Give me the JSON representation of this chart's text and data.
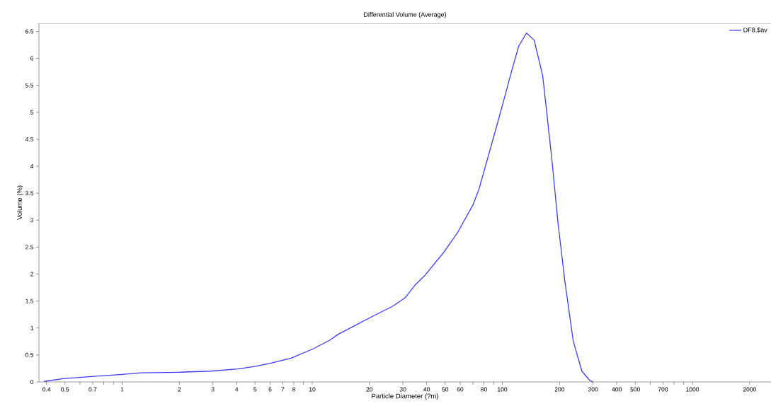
{
  "chart_data": {
    "type": "line",
    "title": "Differential Volume (Average)",
    "xlabel": "Particle Diameter (?m)",
    "ylabel": "Volume (%)",
    "log": "x",
    "legend": "top right",
    "xlim": [
      0.365,
      2590
    ],
    "ylim": [
      0,
      6.65
    ],
    "xticks": [
      0.4,
      0.5,
      {
        "value": 0.6,
        "label": null
      },
      0.7,
      {
        "value": 0.8,
        "label": null
      },
      {
        "value": 0.9,
        "label": null
      },
      1,
      2,
      3,
      4,
      5,
      6,
      7,
      8,
      {
        "value": 9,
        "label": null
      },
      10,
      20,
      30,
      40,
      50,
      60,
      {
        "value": 70,
        "label": null
      },
      80,
      {
        "value": 90,
        "label": null
      },
      100,
      200,
      300,
      400,
      500,
      {
        "value": 600,
        "label": null
      },
      700,
      {
        "value": 800,
        "label": null
      },
      {
        "value": 900,
        "label": null
      },
      1000,
      2000
    ],
    "yticks": [
      0,
      0.5,
      1,
      1.5,
      2,
      2.5,
      3,
      3.5,
      4,
      4.5,
      5,
      5.5,
      6,
      6.5
    ],
    "x": [
      0.388,
      0.49,
      0.689,
      1,
      1.27,
      2,
      2.91,
      4.07,
      5.04,
      6.07,
      7.74,
      10.2,
      12.3,
      13.8,
      20.6,
      26.4,
      30.8,
      34.6,
      39,
      49.1,
      58.4,
      70,
      75.3,
      81.8,
      94.5,
      103,
      112,
      122,
      134,
      147,
      163,
      172,
      183,
      196,
      213,
      236,
      262,
      288,
      300
    ],
    "series": [
      {
        "name": "DF8.$av",
        "color": "#3c3cff",
        "values": [
          0.01,
          0.06,
          0.1,
          0.14,
          0.17,
          0.18,
          0.2,
          0.24,
          0.29,
          0.35,
          0.44,
          0.62,
          0.77,
          0.89,
          1.21,
          1.4,
          1.56,
          1.79,
          1.97,
          2.4,
          2.78,
          3.28,
          3.57,
          4.02,
          4.81,
          5.29,
          5.77,
          6.23,
          6.47,
          6.34,
          5.68,
          4.94,
          4.06,
          2.97,
          1.88,
          0.76,
          0.2,
          0.03,
          0
        ]
      }
    ]
  }
}
